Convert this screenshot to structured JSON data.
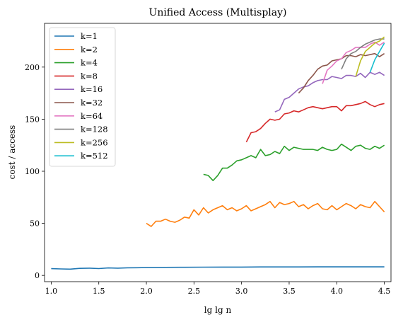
{
  "chart_data": {
    "type": "line",
    "title": "Unified Access (Multisplay)",
    "xlabel": "lg lg n",
    "ylabel": "cost / access",
    "xlim": [
      0.93,
      4.57
    ],
    "ylim": [
      -6,
      242
    ],
    "xticks": [
      {
        "value": 1.0,
        "label": "1.0"
      },
      {
        "value": 1.5,
        "label": "1.5"
      },
      {
        "value": 2.0,
        "label": "2.0"
      },
      {
        "value": 2.5,
        "label": "2.5"
      },
      {
        "value": 3.0,
        "label": "3.0"
      },
      {
        "value": 3.5,
        "label": "3.5"
      },
      {
        "value": 4.0,
        "label": "4.0"
      },
      {
        "value": 4.5,
        "label": "4.5"
      }
    ],
    "yticks": [
      {
        "value": 0,
        "label": "0"
      },
      {
        "value": 50,
        "label": "50"
      },
      {
        "value": 100,
        "label": "100"
      },
      {
        "value": 150,
        "label": "150"
      },
      {
        "value": 200,
        "label": "200"
      }
    ],
    "grid": false,
    "legend": "upper-left",
    "series": [
      {
        "name": "k=1",
        "color": "#1f77b4",
        "x": [
          1.0,
          1.1,
          1.2,
          1.3,
          1.4,
          1.5,
          1.6,
          1.7,
          1.8,
          1.9,
          2.0,
          2.2,
          2.4,
          2.6,
          2.8,
          3.0,
          3.2,
          3.4,
          3.6,
          3.8,
          4.0,
          4.2,
          4.4,
          4.5
        ],
        "y": [
          6.5,
          6.2,
          6.0,
          6.8,
          7.0,
          6.6,
          7.2,
          7.0,
          7.3,
          7.4,
          7.5,
          7.7,
          7.8,
          7.9,
          8.0,
          8.0,
          8.1,
          8.1,
          8.1,
          8.2,
          8.2,
          8.2,
          8.2,
          8.2
        ]
      },
      {
        "name": "k=2",
        "color": "#ff7f0e",
        "x": [
          2.0,
          2.05,
          2.1,
          2.15,
          2.2,
          2.25,
          2.3,
          2.35,
          2.4,
          2.45,
          2.5,
          2.55,
          2.6,
          2.65,
          2.7,
          2.75,
          2.8,
          2.85,
          2.9,
          2.95,
          3.0,
          3.05,
          3.1,
          3.15,
          3.2,
          3.25,
          3.3,
          3.35,
          3.4,
          3.45,
          3.5,
          3.55,
          3.6,
          3.65,
          3.7,
          3.75,
          3.8,
          3.85,
          3.9,
          3.95,
          4.0,
          4.05,
          4.1,
          4.15,
          4.2,
          4.25,
          4.3,
          4.35,
          4.4,
          4.45,
          4.5
        ],
        "y": [
          50,
          47,
          52,
          52,
          54,
          52,
          51,
          53,
          56,
          55,
          63,
          58,
          65,
          60,
          63,
          65,
          67,
          63,
          65,
          62,
          64,
          67,
          62,
          64,
          66,
          68,
          71,
          65,
          70,
          68,
          69,
          71,
          66,
          68,
          64,
          67,
          69,
          64,
          63,
          67,
          63,
          66,
          69,
          67,
          64,
          68,
          66,
          65,
          71,
          66,
          61
        ]
      },
      {
        "name": "k=4",
        "color": "#2ca02c",
        "x": [
          2.6,
          2.65,
          2.7,
          2.75,
          2.8,
          2.85,
          2.9,
          2.95,
          3.0,
          3.05,
          3.1,
          3.15,
          3.2,
          3.25,
          3.3,
          3.35,
          3.4,
          3.45,
          3.5,
          3.55,
          3.6,
          3.65,
          3.7,
          3.75,
          3.8,
          3.85,
          3.9,
          3.95,
          4.0,
          4.05,
          4.1,
          4.15,
          4.2,
          4.25,
          4.3,
          4.35,
          4.4,
          4.45,
          4.5
        ],
        "y": [
          97,
          96,
          91,
          96,
          103,
          103,
          106,
          110,
          111,
          113,
          115,
          113,
          121,
          115,
          116,
          119,
          117,
          124,
          120,
          123,
          122,
          121,
          121,
          121,
          120,
          123,
          121,
          120,
          121,
          126,
          123,
          120,
          124,
          125,
          122,
          121,
          124,
          122,
          125
        ]
      },
      {
        "name": "k=8",
        "color": "#d62728",
        "x": [
          3.05,
          3.1,
          3.15,
          3.2,
          3.25,
          3.3,
          3.35,
          3.4,
          3.45,
          3.5,
          3.55,
          3.6,
          3.65,
          3.7,
          3.75,
          3.8,
          3.85,
          3.9,
          3.95,
          4.0,
          4.05,
          4.1,
          4.15,
          4.2,
          4.25,
          4.3,
          4.35,
          4.4,
          4.45,
          4.5
        ],
        "y": [
          128,
          137,
          138,
          141,
          146,
          150,
          149,
          150,
          155,
          156,
          158,
          157,
          159,
          161,
          162,
          161,
          160,
          161,
          162,
          162,
          158,
          163,
          163,
          164,
          165,
          167,
          164,
          162,
          164,
          165
        ]
      },
      {
        "name": "k=16",
        "color": "#9467bd",
        "x": [
          3.35,
          3.4,
          3.45,
          3.5,
          3.55,
          3.6,
          3.65,
          3.7,
          3.75,
          3.8,
          3.85,
          3.9,
          3.95,
          4.0,
          4.05,
          4.1,
          4.15,
          4.2,
          4.25,
          4.3,
          4.35,
          4.4,
          4.45,
          4.5
        ],
        "y": [
          157,
          159,
          169,
          171,
          175,
          179,
          181,
          182,
          185,
          187,
          188,
          188,
          191,
          190,
          189,
          192,
          192,
          191,
          194,
          190,
          195,
          193,
          195,
          192
        ]
      },
      {
        "name": "k=32",
        "color": "#8c564b",
        "x": [
          3.6,
          3.65,
          3.7,
          3.75,
          3.8,
          3.85,
          3.9,
          3.95,
          4.0,
          4.05,
          4.1,
          4.15,
          4.2,
          4.25,
          4.3,
          4.35,
          4.4,
          4.45,
          4.5
        ],
        "y": [
          175,
          180,
          187,
          192,
          198,
          201,
          202,
          206,
          207,
          208,
          211,
          211,
          210,
          212,
          211,
          212,
          213,
          210,
          213
        ]
      },
      {
        "name": "k=64",
        "color": "#e377c2",
        "x": [
          3.85,
          3.9,
          3.95,
          4.0,
          4.05,
          4.1,
          4.15,
          4.2,
          4.25,
          4.3,
          4.35,
          4.4,
          4.45,
          4.5
        ],
        "y": [
          184,
          197,
          201,
          206,
          208,
          214,
          216,
          219,
          219,
          219,
          222,
          224,
          221,
          224
        ]
      },
      {
        "name": "k=128",
        "color": "#7f7f7f",
        "x": [
          4.05,
          4.1,
          4.15,
          4.2,
          4.25,
          4.3,
          4.35,
          4.4,
          4.45,
          4.5
        ],
        "y": [
          198,
          208,
          213,
          215,
          219,
          222,
          224,
          226,
          227,
          227
        ]
      },
      {
        "name": "k=256",
        "color": "#bcbd22",
        "x": [
          4.2,
          4.25,
          4.3,
          4.35,
          4.4,
          4.45,
          4.5
        ],
        "y": [
          191,
          206,
          215,
          219,
          223,
          225,
          229
        ]
      },
      {
        "name": "k=512",
        "color": "#17becf",
        "x": [
          4.35,
          4.4,
          4.45,
          4.5
        ],
        "y": [
          195,
          207,
          215,
          223
        ]
      }
    ]
  }
}
